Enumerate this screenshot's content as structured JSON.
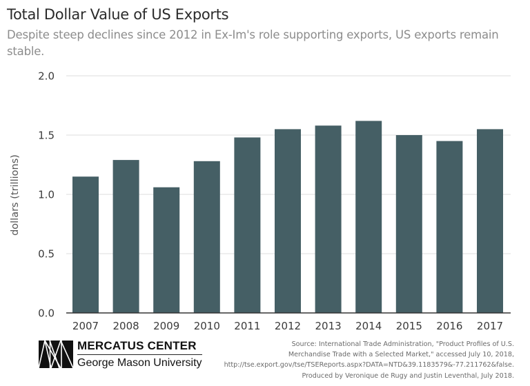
{
  "header": {
    "title": "Total Dollar Value of US Exports",
    "subtitle": "Despite steep declines since 2012 in Ex-Im's role supporting exports, US exports remain stable."
  },
  "chart_data": {
    "type": "bar",
    "title": "Total Dollar Value of US Exports",
    "subtitle": "Despite steep declines since 2012 in Ex-Im's role supporting exports, US exports remain stable.",
    "xlabel": "",
    "ylabel": "dollars (trillions)",
    "categories": [
      "2007",
      "2008",
      "2009",
      "2010",
      "2011",
      "2012",
      "2013",
      "2014",
      "2015",
      "2016",
      "2017"
    ],
    "values": [
      1.15,
      1.29,
      1.06,
      1.28,
      1.48,
      1.55,
      1.58,
      1.62,
      1.5,
      1.45,
      1.55
    ],
    "ylim": [
      0,
      2.0
    ],
    "yticks": [
      0.0,
      0.5,
      1.0,
      1.5,
      2.0
    ],
    "ytick_labels": [
      "0.0",
      "0.5",
      "1.0",
      "1.5",
      "2.0"
    ],
    "grid": true,
    "legend": "none",
    "bar_color": "#455f65",
    "grid_color": "#dddddd",
    "axis_color": "#333333"
  },
  "footer": {
    "logo": {
      "name": "MERCATUS CENTER",
      "affiliation": "George Mason University"
    },
    "source_lines": [
      "Source: International Trade Administration, \"Product Profiles of U.S.",
      "Merchandise Trade with a Selected Market,\" accessed July 10, 2018,",
      "http://tse.export.gov/tse/TSEReports.aspx?DATA=NTD&39.1183579&-77.211762&false.",
      "Produced by Veronique de Rugy and Justin Leventhal, July 2018."
    ]
  }
}
